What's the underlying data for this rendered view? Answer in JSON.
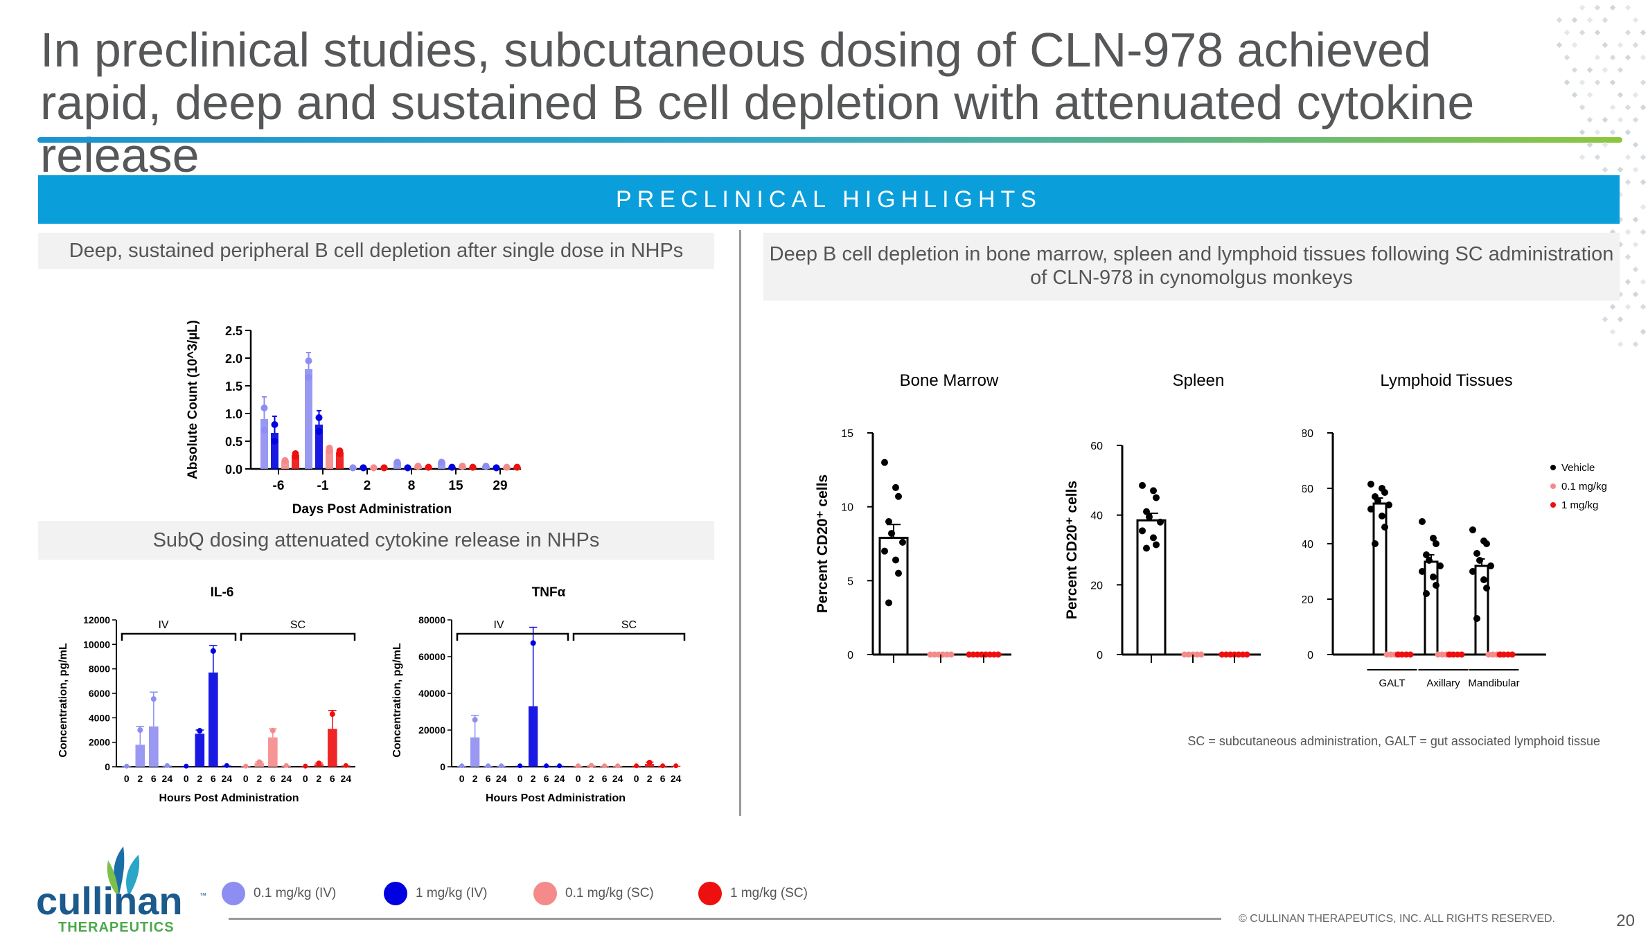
{
  "title": "In preclinical studies, subcutaneous dosing of CLN-978 achieved rapid, deep and sustained B cell depletion with attenuated cytokine release",
  "banner": "PRECLINICAL HIGHLIGHTS",
  "left_subhead": "Deep, sustained peripheral B cell depletion after single dose in NHPs",
  "cytokine_subhead": "SubQ dosing attenuated cytokine release in NHPs",
  "right_subhead": "Deep B cell depletion in bone marrow, spleen and lymphoid tissues following SC administration of CLN-978 in cynomolgus monkeys",
  "footnote": "SC = subcutaneous administration, GALT = gut associated lymphoid tissue",
  "legend": [
    {
      "label": "0.1 mg/kg (IV)",
      "color": "#8e8ef2"
    },
    {
      "label": "1 mg/kg (IV)",
      "color": "#0000e0"
    },
    {
      "label": "0.1 mg/kg (SC)",
      "color": "#f58a8a"
    },
    {
      "label": "1 mg/kg (SC)",
      "color": "#ee0f0f"
    }
  ],
  "copyright": "© CULLINAN THERAPEUTICS, INC. ALL RIGHTS RESERVED.",
  "page_number": "20",
  "logo": {
    "name": "cullinan",
    "tagline": "THERAPEUTICS",
    "tm": "™"
  },
  "colors": {
    "ivlow": "#8e8ef2",
    "ivhigh": "#0000e0",
    "sclow": "#f58a8a",
    "schigh": "#ee0f0f",
    "vehicle": "#000000"
  },
  "chart_data": [
    {
      "id": "bcell",
      "type": "bar",
      "title": "",
      "xlabel": "Days Post Administration",
      "ylabel": "Absolute Count (10^3/µL)",
      "ylim": [
        0,
        2.5
      ],
      "yticks": [
        "0.0",
        "0.5",
        "1.0",
        "1.5",
        "2.0",
        "2.5"
      ],
      "categories": [
        "-6",
        "-1",
        "2",
        "8",
        "15",
        "29"
      ],
      "series": [
        {
          "name": "0.1 mg/kg (IV)",
          "values": [
            0.9,
            1.8,
            0.02,
            0.12,
            0.12,
            0.05
          ],
          "err": [
            0.4,
            0.3,
            0,
            0,
            0,
            0
          ]
        },
        {
          "name": "1 mg/kg (IV)",
          "values": [
            0.65,
            0.8,
            0.02,
            0.02,
            0.03,
            0.02
          ],
          "err": [
            0.3,
            0.25,
            0,
            0,
            0,
            0
          ]
        },
        {
          "name": "0.1 mg/kg (SC)",
          "values": [
            0.15,
            0.35,
            0.02,
            0.05,
            0.05,
            0.03
          ],
          "err": [
            0,
            0.05,
            0,
            0,
            0,
            0
          ]
        },
        {
          "name": "1 mg/kg (SC)",
          "values": [
            0.25,
            0.3,
            0.02,
            0.03,
            0.03,
            0.03
          ],
          "err": [
            0.05,
            0.05,
            0,
            0,
            0,
            0
          ]
        }
      ]
    },
    {
      "id": "il6",
      "type": "bar",
      "title": "IL-6",
      "xlabel": "Hours Post Administration",
      "ylabel": "Concentration, pg/mL",
      "ylim": [
        0,
        12000
      ],
      "yticks": [
        "0",
        "2000",
        "4000",
        "6000",
        "8000",
        "10000",
        "12000"
      ],
      "categories": [
        "0",
        "2",
        "6",
        "24"
      ],
      "group_labels": [
        "IV",
        "SC"
      ],
      "series": [
        {
          "name": "0.1 mg/kg (IV)",
          "values": [
            50,
            1800,
            3300,
            100
          ],
          "err": [
            0,
            1500,
            2800,
            0
          ]
        },
        {
          "name": "1 mg/kg (IV)",
          "values": [
            50,
            2700,
            7700,
            100
          ],
          "err": [
            0,
            300,
            2200,
            0
          ]
        },
        {
          "name": "0.1 mg/kg (SC)",
          "values": [
            50,
            300,
            2400,
            100
          ],
          "err": [
            0,
            100,
            700,
            0
          ]
        },
        {
          "name": "1 mg/kg (SC)",
          "values": [
            50,
            200,
            3100,
            100
          ],
          "err": [
            0,
            100,
            1500,
            0
          ]
        }
      ]
    },
    {
      "id": "tnfa",
      "type": "bar",
      "title": "TNFα",
      "xlabel": "Hours Post Administration",
      "ylabel": "Concentration, pg/mL",
      "ylim": [
        0,
        80000
      ],
      "yticks": [
        "0",
        "20000",
        "40000",
        "60000",
        "80000"
      ],
      "categories": [
        "0",
        "2",
        "6",
        "24"
      ],
      "group_labels": [
        "IV",
        "SC"
      ],
      "series": [
        {
          "name": "0.1 mg/kg (IV)",
          "values": [
            500,
            16000,
            500,
            500
          ],
          "err": [
            0,
            12000,
            0,
            0
          ]
        },
        {
          "name": "1 mg/kg (IV)",
          "values": [
            500,
            33000,
            500,
            500
          ],
          "err": [
            0,
            43000,
            0,
            0
          ]
        },
        {
          "name": "0.1 mg/kg (SC)",
          "values": [
            500,
            800,
            500,
            500
          ],
          "err": [
            0,
            0,
            0,
            0
          ]
        },
        {
          "name": "1 mg/kg (SC)",
          "values": [
            500,
            1500,
            500,
            500
          ],
          "err": [
            0,
            1000,
            0,
            0
          ]
        }
      ]
    },
    {
      "id": "bonemarrow",
      "type": "scatter",
      "title": "Bone Marrow",
      "ylabel": "Percent CD20⁺ cells",
      "ylim": [
        0,
        15
      ],
      "yticks": [
        "0",
        "5",
        "10",
        "15"
      ],
      "groups": [
        {
          "name": "Vehicle",
          "mean": 7.9,
          "sem": 0.9,
          "points": [
            13.0,
            11.3,
            10.7,
            9.0,
            8.2,
            7.6,
            7.0,
            6.4,
            5.5,
            3.5
          ]
        },
        {
          "name": "0.1 mg/kg",
          "mean": 0,
          "sem": 0,
          "points": [
            0,
            0,
            0,
            0,
            0,
            0
          ]
        },
        {
          "name": "1 mg/kg",
          "mean": 0,
          "sem": 0,
          "points": [
            0,
            0,
            0,
            0,
            0,
            0,
            0,
            0
          ]
        }
      ]
    },
    {
      "id": "spleen",
      "type": "scatter",
      "title": "Spleen",
      "ylabel": "Percent CD20⁺ cells",
      "ylim": [
        0,
        60
      ],
      "yticks": [
        "0",
        "20",
        "40",
        "60"
      ],
      "groups": [
        {
          "name": "Vehicle",
          "mean": 38.5,
          "sem": 2.0,
          "points": [
            48.5,
            47.0,
            45.0,
            41.0,
            39.5,
            38.0,
            35.5,
            33.5,
            31.5,
            30.5
          ]
        },
        {
          "name": "0.1 mg/kg",
          "mean": 0,
          "sem": 0,
          "points": [
            0,
            0,
            0,
            0,
            0
          ]
        },
        {
          "name": "1 mg/kg",
          "mean": 0,
          "sem": 0,
          "points": [
            0,
            0,
            0,
            0,
            0,
            0,
            0
          ]
        }
      ]
    },
    {
      "id": "lymphoid",
      "type": "scatter",
      "title": "Lymphoid Tissues",
      "ylabel": "Percent CD20⁺ cells",
      "ylim": [
        0,
        80
      ],
      "yticks": [
        "0",
        "20",
        "40",
        "60",
        "80"
      ],
      "categories": [
        "GALT",
        "Axillary",
        "Mandibular"
      ],
      "legend": [
        "Vehicle",
        "0.1 mg/kg",
        "1 mg/kg"
      ],
      "groups": [
        {
          "category": "GALT",
          "name": "Vehicle",
          "mean": 54.5,
          "sem": 2.0,
          "points": [
            61.5,
            60.0,
            58.5,
            57.0,
            55.5,
            54.0,
            52.5,
            50.0,
            46.0,
            40.0
          ]
        },
        {
          "category": "GALT",
          "name": "0.1 mg/kg",
          "mean": 0,
          "sem": 0,
          "points": [
            0,
            0,
            0,
            0
          ]
        },
        {
          "category": "GALT",
          "name": "1 mg/kg",
          "mean": 0,
          "sem": 0,
          "points": [
            0,
            0,
            0,
            0
          ]
        },
        {
          "category": "Axillary",
          "name": "Vehicle",
          "mean": 33.5,
          "sem": 2.5,
          "points": [
            48.0,
            42.0,
            40.0,
            36.0,
            34.0,
            32.0,
            30.0,
            28.0,
            25.0,
            22.0
          ]
        },
        {
          "category": "Axillary",
          "name": "0.1 mg/kg",
          "mean": 0,
          "sem": 0,
          "points": [
            0,
            0,
            0,
            0
          ]
        },
        {
          "category": "Axillary",
          "name": "1 mg/kg",
          "mean": 0,
          "sem": 0,
          "points": [
            0,
            0,
            0,
            0
          ]
        },
        {
          "category": "Mandibular",
          "name": "Vehicle",
          "mean": 32.0,
          "sem": 2.5,
          "points": [
            45.0,
            41.0,
            40.0,
            36.5,
            34.0,
            32.0,
            30.0,
            27.0,
            24.0,
            13.0
          ]
        },
        {
          "category": "Mandibular",
          "name": "0.1 mg/kg",
          "mean": 0,
          "sem": 0,
          "points": [
            0,
            0,
            0,
            0
          ]
        },
        {
          "category": "Mandibular",
          "name": "1 mg/kg",
          "mean": 0,
          "sem": 0,
          "points": [
            0,
            0,
            0,
            0
          ]
        }
      ]
    }
  ]
}
